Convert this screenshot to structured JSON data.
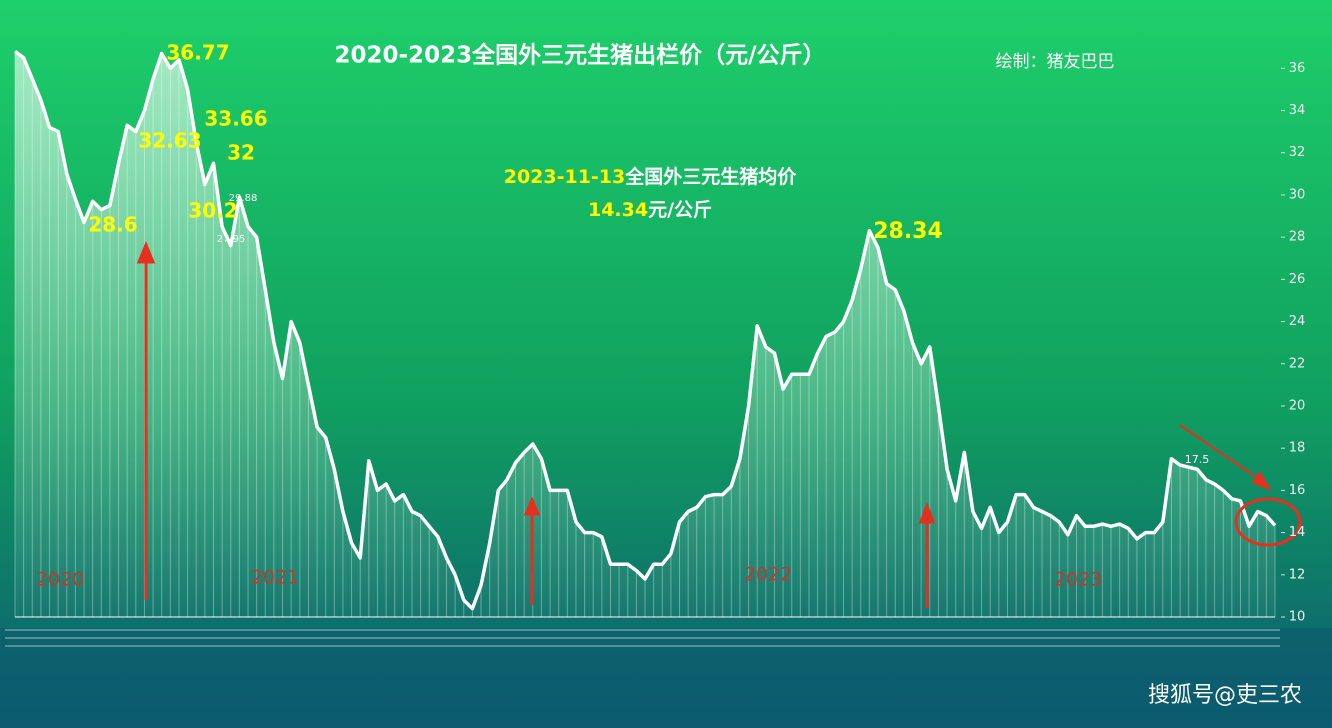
{
  "chart_data": {
    "type": "area",
    "title": "2020-2023全国外三元生猪出栏价（元/公斤）",
    "credit": "绘制：猪友巴巴",
    "note_date": "2023-11-13",
    "note_text": "全国外三元生猪均价",
    "note_price": "14.34",
    "note_unit": "元/公斤",
    "annotations": [
      "36.77",
      "33.66",
      "32.63",
      "32",
      "30.2",
      "28.6",
      "29.88",
      "27.95",
      "28.34",
      "17.5"
    ],
    "year_labels": [
      "2020",
      "2021",
      "2022",
      "2023"
    ],
    "watermark": "搜狐号@吏三农",
    "color": "#ffffff",
    "ylim": [
      10,
      39
    ],
    "yticks": [
      10,
      12,
      14,
      16,
      18,
      20,
      22,
      24,
      26,
      28,
      30,
      32,
      34,
      36
    ],
    "values": [
      36.8,
      36.5,
      35.5,
      34.5,
      33.2,
      33.0,
      31.0,
      29.8,
      28.7,
      29.7,
      29.3,
      29.5,
      31.5,
      33.3,
      33.0,
      34.0,
      35.5,
      36.7,
      36.0,
      36.4,
      35.0,
      32.5,
      30.5,
      31.5,
      28.5,
      27.6,
      29.9,
      28.5,
      28.0,
      25.5,
      23.0,
      21.3,
      24.0,
      23.0,
      21.0,
      19.0,
      18.5,
      17.0,
      15.0,
      13.5,
      12.8,
      17.4,
      16.0,
      16.3,
      15.5,
      15.8,
      15.0,
      14.8,
      14.3,
      13.8,
      12.8,
      12.0,
      10.8,
      10.4,
      11.5,
      13.5,
      16.0,
      16.5,
      17.3,
      17.8,
      18.2,
      17.5,
      16.0,
      16.0,
      16.0,
      14.5,
      14.0,
      14.0,
      13.8,
      12.5,
      12.5,
      12.5,
      12.2,
      11.8,
      12.5,
      12.5,
      13.0,
      14.5,
      15.0,
      15.2,
      15.7,
      15.8,
      15.8,
      16.2,
      17.5,
      20.0,
      23.8,
      22.8,
      22.5,
      20.8,
      21.5,
      21.5,
      21.5,
      22.5,
      23.3,
      23.5,
      24.0,
      25.0,
      26.5,
      28.3,
      27.5,
      25.8,
      25.5,
      24.5,
      23.0,
      22.0,
      22.8,
      20.0,
      17.0,
      15.5,
      17.8,
      15.0,
      14.2,
      15.2,
      14.0,
      14.5,
      15.8,
      15.8,
      15.2,
      15.0,
      14.8,
      14.5,
      13.9,
      14.8,
      14.3,
      14.3,
      14.4,
      14.3,
      14.4,
      14.2,
      13.7,
      14.0,
      14.0,
      14.5,
      17.5,
      17.2,
      17.1,
      17.0,
      16.5,
      16.3,
      16.0,
      15.6,
      15.5,
      14.3,
      15.0,
      14.8,
      14.34
    ]
  }
}
